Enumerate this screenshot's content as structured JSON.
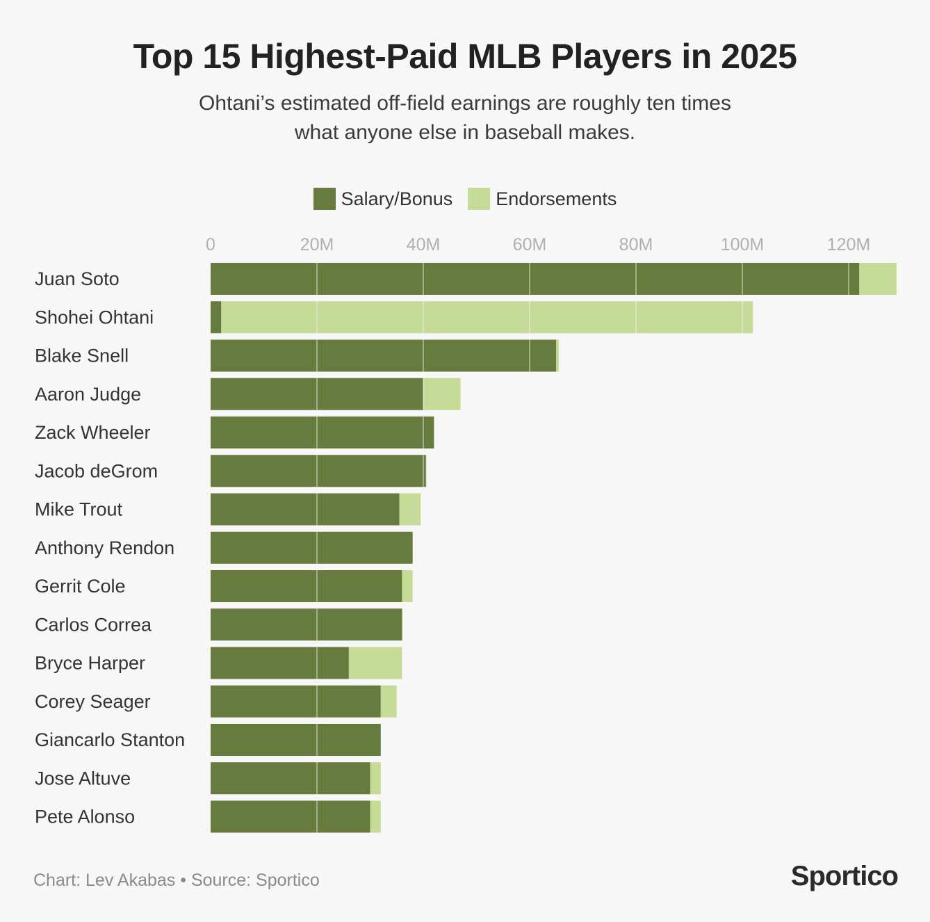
{
  "title": "Top 15 Highest-Paid MLB Players in 2025",
  "subtitle_lines": [
    "Ohtani’s estimated off-field earnings are roughly ten times",
    "what anyone else in baseball makes."
  ],
  "colors": {
    "salary": "#677b3f",
    "endorsements": "#c5db97",
    "gridline": "#d6d6d6",
    "background": "#f7f7f7"
  },
  "footer": {
    "credit": "Chart: Lev Akabas",
    "separator": " • ",
    "source": "Source: Sportico",
    "brand": "Sportico"
  },
  "chart_data": {
    "type": "bar",
    "orientation": "horizontal",
    "stacked": true,
    "title": "Top 15 Highest-Paid MLB Players in 2025",
    "xlim": [
      0,
      129
    ],
    "x_ticks": [
      0,
      20,
      40,
      60,
      80,
      100,
      120
    ],
    "x_tick_labels": [
      "0",
      "20M",
      "40M",
      "60M",
      "80M",
      "100M",
      "120M"
    ],
    "legend_position": "top-center",
    "categories": [
      "Juan Soto",
      "Shohei Ohtani",
      "Blake Snell",
      "Aaron Judge",
      "Zack Wheeler",
      "Jacob deGrom",
      "Mike Trout",
      "Anthony Rendon",
      "Gerrit Cole",
      "Carlos Correa",
      "Bryce Harper",
      "Corey Seager",
      "Giancarlo Stanton",
      "Jose Altuve",
      "Pete Alonso"
    ],
    "series": [
      {
        "name": "Salary/Bonus",
        "color": "#677b3f",
        "values": [
          122,
          2,
          65,
          40,
          42,
          40.5,
          35.5,
          38,
          36,
          36,
          26,
          32,
          32,
          30,
          30
        ]
      },
      {
        "name": "Endorsements",
        "color": "#c5db97",
        "values": [
          7,
          100,
          0.5,
          7,
          0.1,
          0.1,
          4,
          0,
          2,
          0.1,
          10,
          3,
          0,
          2,
          2
        ]
      }
    ]
  }
}
